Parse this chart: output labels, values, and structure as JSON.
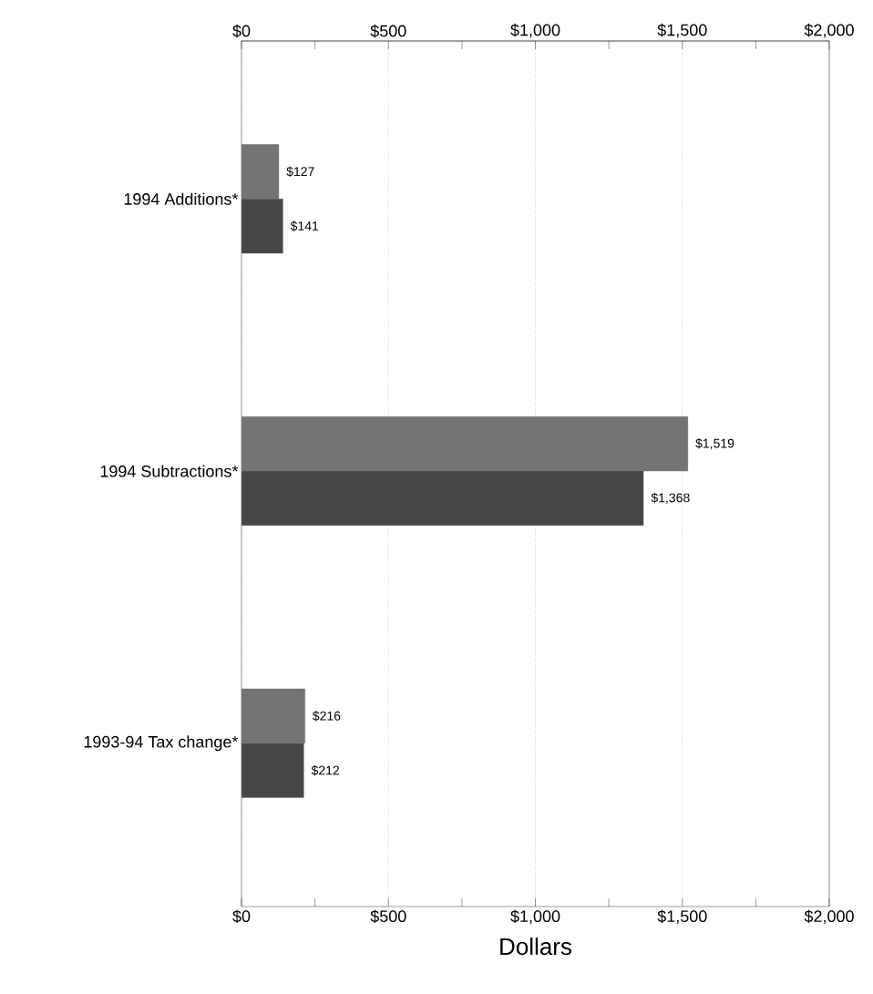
{
  "chart_data": {
    "type": "bar",
    "orientation": "horizontal",
    "xlabel": "Dollars",
    "categories": [
      "1994 Additions*",
      "1994 Subtractions*",
      "1993-94 Tax change*"
    ],
    "series": [
      {
        "color": "#747474",
        "values": [
          127,
          1519,
          216
        ],
        "value_labels": [
          "$127",
          "$1,519",
          "$216"
        ]
      },
      {
        "color": "#464646",
        "values": [
          141,
          1368,
          212
        ],
        "value_labels": [
          "$141",
          "$1,368",
          "$212"
        ]
      }
    ],
    "xlim": [
      0,
      2000
    ],
    "xticks": [
      {
        "value": 0,
        "label": "$0"
      },
      {
        "value": 250,
        "label": null
      },
      {
        "value": 500,
        "label": "$500"
      },
      {
        "value": 750,
        "label": null
      },
      {
        "value": 1000,
        "label": "$1,000"
      },
      {
        "value": 1250,
        "label": null
      },
      {
        "value": 1500,
        "label": "$1,500"
      },
      {
        "value": 1750,
        "label": null
      },
      {
        "value": 2000,
        "label": "$2,000"
      }
    ],
    "x2lim": [
      0,
      2000
    ],
    "x2ticks": [
      {
        "value": 0,
        "label": "$0"
      },
      {
        "value": 250,
        "label": null
      },
      {
        "value": 500,
        "label": "$500"
      },
      {
        "value": 750,
        "label": null
      },
      {
        "value": 1000,
        "label": "$1,000"
      },
      {
        "value": 1250,
        "label": null
      },
      {
        "value": 1500,
        "label": "$1,500"
      },
      {
        "value": 1750,
        "label": null
      },
      {
        "value": 2000,
        "label": "$2,000"
      }
    ],
    "grid": "x"
  }
}
